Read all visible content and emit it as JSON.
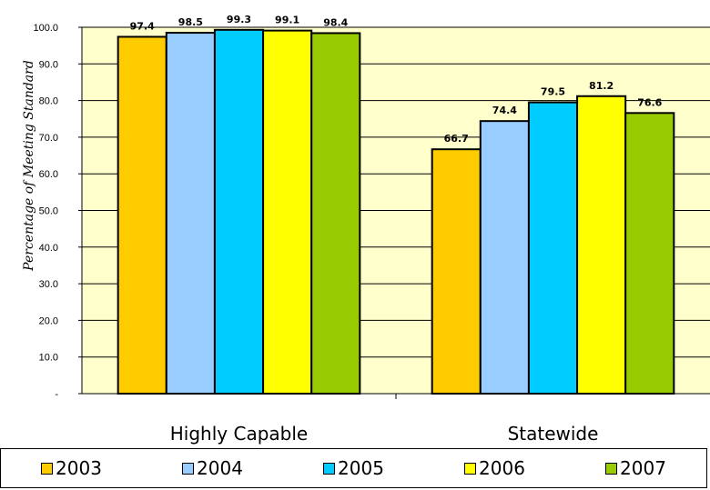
{
  "chart_data": {
    "type": "bar",
    "title": "",
    "xlabel": "",
    "ylabel": "Percentage of Meeting Standard",
    "categories": [
      "Highly Capable",
      "Statewide"
    ],
    "series": [
      {
        "name": "2003",
        "values": [
          97.4,
          66.7
        ],
        "color": "#FFCC00"
      },
      {
        "name": "2004",
        "values": [
          98.5,
          74.4
        ],
        "color": "#99CCFF"
      },
      {
        "name": "2005",
        "values": [
          99.3,
          79.5
        ],
        "color": "#00CCFF"
      },
      {
        "name": "2006",
        "values": [
          99.1,
          81.2
        ],
        "color": "#FFFF00"
      },
      {
        "name": "2007",
        "values": [
          98.4,
          76.6
        ],
        "color": "#99CC00"
      }
    ],
    "value_labels": [
      [
        "97.4",
        "66.7"
      ],
      [
        "98.5",
        "74.4"
      ],
      [
        "99.3",
        "79.5"
      ],
      [
        "99.1",
        "81.2"
      ],
      [
        "98.4",
        "76.6"
      ]
    ],
    "ylim": [
      0,
      100
    ],
    "yticks": [
      "-",
      "10.0",
      "20.0",
      "30.0",
      "40.0",
      "50.0",
      "60.0",
      "70.0",
      "80.0",
      "90.0",
      "100.0"
    ],
    "grid": true,
    "plot_background": "#FFFFCC",
    "legend_position": "bottom"
  }
}
